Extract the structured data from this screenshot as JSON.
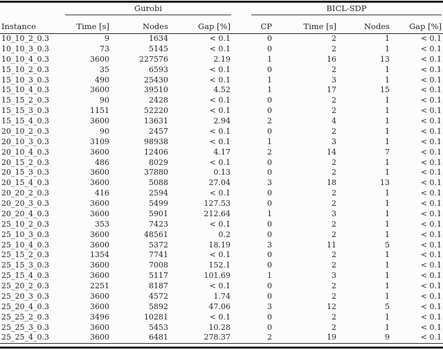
{
  "table": {
    "col_instance": "Instance",
    "groups": [
      {
        "label": "Gurobi"
      },
      {
        "label": "BICL-SDP"
      }
    ],
    "columns": [
      "Time [s]",
      "Nodes",
      "Gap [%]",
      "CP",
      "Time [s]",
      "Nodes",
      "Gap [%]"
    ],
    "rows": [
      [
        "10_10_2_0.3",
        "9",
        "1634",
        "< 0.1",
        "0",
        "2",
        "1",
        "< 0.1"
      ],
      [
        "10_10_3_0.3",
        "73",
        "5145",
        "< 0.1",
        "0",
        "2",
        "1",
        "< 0.1"
      ],
      [
        "10_10_4_0.3",
        "3600",
        "227576",
        "2.19",
        "1",
        "16",
        "13",
        "< 0.1"
      ],
      [
        "15_10_2_0.3",
        "35",
        "6593",
        "< 0.1",
        "0",
        "2",
        "1",
        "< 0.1"
      ],
      [
        "15_10_3_0.3",
        "490",
        "25430",
        "< 0.1",
        "1",
        "3",
        "1",
        "< 0.1"
      ],
      [
        "15_10_4_0.3",
        "3600",
        "39510",
        "4.52",
        "1",
        "17",
        "15",
        "< 0.1"
      ],
      [
        "15_15_2_0.3",
        "90",
        "2428",
        "< 0.1",
        "0",
        "2",
        "1",
        "< 0.1"
      ],
      [
        "15_15_3_0.3",
        "1151",
        "52220",
        "< 0.1",
        "0",
        "2",
        "1",
        "< 0.1"
      ],
      [
        "15_15_4_0.3",
        "3600",
        "13631",
        "2.94",
        "2",
        "4",
        "1",
        "< 0.1"
      ],
      [
        "20_10_2_0.3",
        "90",
        "2457",
        "< 0.1",
        "0",
        "2",
        "1",
        "< 0.1"
      ],
      [
        "20_10_3_0.3",
        "3109",
        "98938",
        "< 0.1",
        "1",
        "3",
        "1",
        "< 0.1"
      ],
      [
        "20_10_4_0.3",
        "3600",
        "12406",
        "4.17",
        "2",
        "14",
        "7",
        "< 0.1"
      ],
      [
        "20_15_2_0.3",
        "486",
        "8029",
        "< 0.1",
        "0",
        "2",
        "1",
        "< 0.1"
      ],
      [
        "20_15_3_0.3",
        "3600",
        "37880",
        "0.13",
        "0",
        "2",
        "1",
        "< 0.1"
      ],
      [
        "20_15_4_0.3",
        "3600",
        "5088",
        "27.04",
        "3",
        "18",
        "13",
        "< 0.1"
      ],
      [
        "20_20_2_0.3",
        "416",
        "2594",
        "< 0.1",
        "0",
        "2",
        "1",
        "< 0.1"
      ],
      [
        "20_20_3_0.3",
        "3600",
        "5499",
        "127.53",
        "0",
        "2",
        "1",
        "< 0.1"
      ],
      [
        "20_20_4_0.3",
        "3600",
        "5901",
        "212.64",
        "1",
        "3",
        "1",
        "< 0.1"
      ],
      [
        "25_10_2_0.3",
        "353",
        "7423",
        "< 0.1",
        "0",
        "2",
        "1",
        "< 0.1"
      ],
      [
        "25_10_3_0.3",
        "3600",
        "48561",
        "0.2",
        "0",
        "2",
        "1",
        "< 0.1"
      ],
      [
        "25_10_4_0.3",
        "3600",
        "5372",
        "18.19",
        "3",
        "11",
        "5",
        "< 0.1"
      ],
      [
        "25_15_2_0.3",
        "1354",
        "7741",
        "< 0.1",
        "0",
        "2",
        "1",
        "< 0.1"
      ],
      [
        "25_15_3_0.3",
        "3600",
        "7008",
        "152.1",
        "0",
        "2",
        "1",
        "< 0.1"
      ],
      [
        "25_15_4_0.3",
        "3600",
        "5117",
        "101.69",
        "1",
        "3",
        "1",
        "< 0.1"
      ],
      [
        "25_20_2_0.3",
        "2251",
        "8187",
        "< 0.1",
        "0",
        "2",
        "1",
        "< 0.1"
      ],
      [
        "25_20_3_0.3",
        "3600",
        "4572",
        "1.74",
        "0",
        "2",
        "1",
        "< 0.1"
      ],
      [
        "25_20_4_0.3",
        "3600",
        "5892",
        "47.06",
        "3",
        "12",
        "5",
        "< 0.1"
      ],
      [
        "25_25_2_0.3",
        "3496",
        "10281",
        "< 0.1",
        "0",
        "2",
        "1",
        "< 0.1"
      ],
      [
        "25_25_3_0.3",
        "3600",
        "5453",
        "10.28",
        "0",
        "2",
        "1",
        "< 0.1"
      ],
      [
        "25_25_4_0.3",
        "3600",
        "6481",
        "278.37",
        "2",
        "19",
        "9",
        "< 0.1"
      ]
    ]
  },
  "colors": {
    "text": "#262626",
    "rule": "#1c1c1c",
    "background": "#fcfcfc"
  }
}
